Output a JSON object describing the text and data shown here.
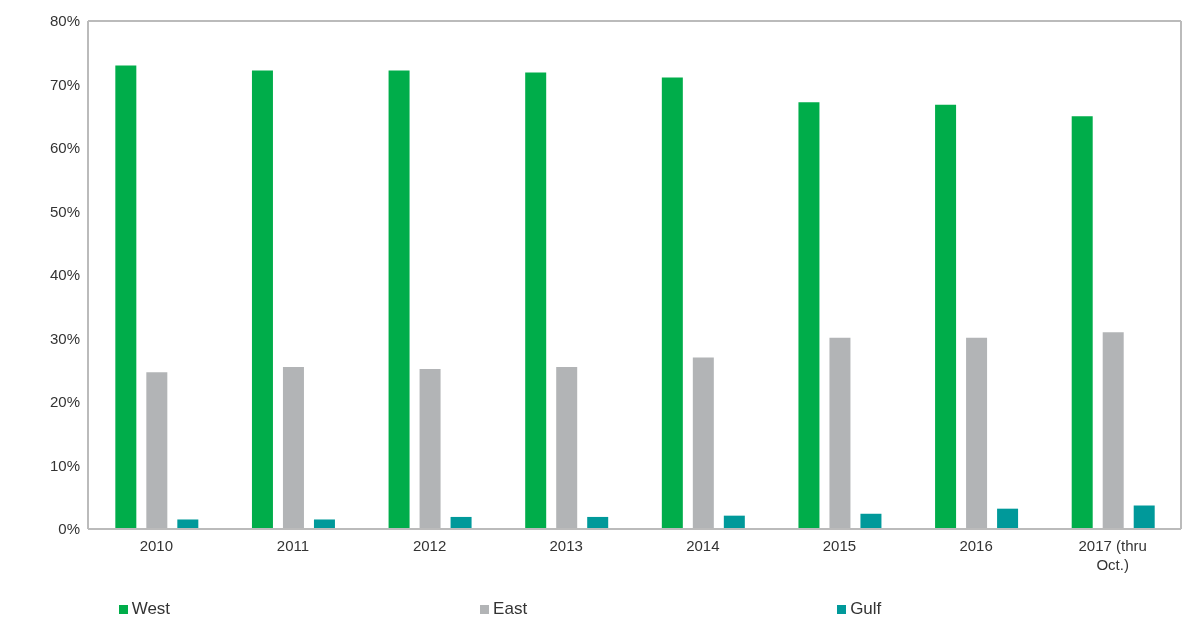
{
  "chart_data": {
    "type": "bar",
    "categories": [
      "2010",
      "2011",
      "2012",
      "2013",
      "2014",
      "2015",
      "2016",
      "2017 (thru Oct.)"
    ],
    "series": [
      {
        "name": "West",
        "color": "#00ad4a",
        "values": [
          73,
          72.2,
          72.2,
          71.9,
          71.1,
          67.2,
          66.8,
          65
        ]
      },
      {
        "name": "East",
        "color": "#b2b4b6",
        "values": [
          24.7,
          25.5,
          25.2,
          25.5,
          27,
          30.1,
          30.1,
          31
        ]
      },
      {
        "name": "Gulf",
        "color": "#00999a",
        "values": [
          1.5,
          1.5,
          1.9,
          1.9,
          2.1,
          2.4,
          3.2,
          3.7
        ]
      }
    ],
    "ylim": [
      0,
      80
    ],
    "yticks": [
      {
        "value": 0,
        "label": "0%"
      },
      {
        "value": 10,
        "label": "10%"
      },
      {
        "value": 20,
        "label": "20%"
      },
      {
        "value": 30,
        "label": "30%"
      },
      {
        "value": 40,
        "label": "40%"
      },
      {
        "value": 50,
        "label": "50%"
      },
      {
        "value": 60,
        "label": "60%"
      },
      {
        "value": 70,
        "label": "70%"
      },
      {
        "value": 80,
        "label": "80%"
      }
    ],
    "grid": false,
    "legend": "bottom"
  }
}
